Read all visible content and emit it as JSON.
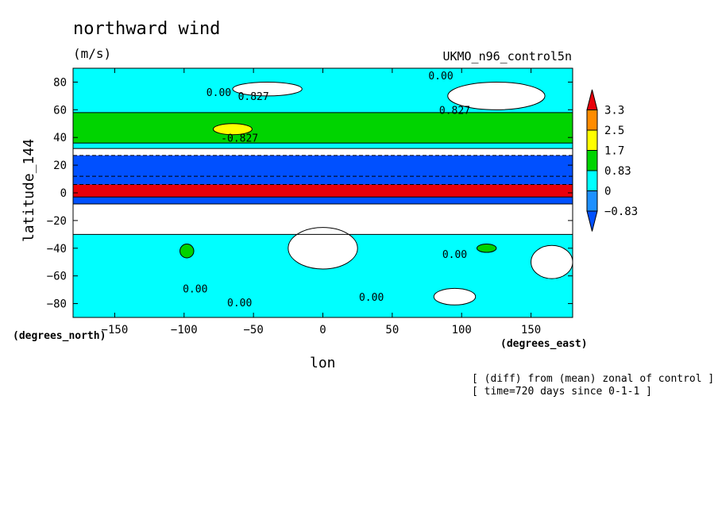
{
  "chart_data": {
    "type": "heatmap",
    "title": "northward wind",
    "units": "(m/s)",
    "dataset": "UKMO_n96_control5n",
    "xlabel": "lon",
    "ylabel": "latitude_144",
    "x_unit_label": "(degrees_east)",
    "y_unit_label": "(degrees_north)",
    "xlim": [
      -180,
      180
    ],
    "ylim": [
      -90,
      90
    ],
    "x_ticks": [
      -150,
      -100,
      -50,
      0,
      50,
      100,
      150
    ],
    "y_ticks": [
      80,
      60,
      40,
      20,
      0,
      -20,
      -40,
      -60,
      -80
    ],
    "colorbar": {
      "levels": [
        "3.3",
        "2.5",
        "1.7",
        "0.83",
        "0",
        "−0.83"
      ],
      "colors": [
        "#e8000b",
        "#ff8c00",
        "#ffff00",
        "#00d400",
        "#00ffff",
        "#1e90ff",
        "#0050ff"
      ]
    },
    "contour_labels": [
      "0.00",
      "0.827",
      "-0.827"
    ],
    "notes": [
      "[ (diff) from (mean) zonal of control ]",
      "[ time=720 days since 0-1-1 ]"
    ],
    "bands": [
      {
        "lat_from": 90,
        "lat_to": 58,
        "level": "0"
      },
      {
        "lat_from": 58,
        "lat_to": 36,
        "level": "0.83"
      },
      {
        "lat_from": 36,
        "lat_to": 32,
        "level": "0"
      },
      {
        "lat_from": 32,
        "lat_to": 27,
        "level": "-0.83"
      },
      {
        "lat_from": 27,
        "lat_to": 12,
        "level": "below"
      },
      {
        "lat_from": 12,
        "lat_to": 6,
        "level": "below"
      },
      {
        "lat_from": 6,
        "lat_to": -3,
        "level": "3.3"
      },
      {
        "lat_from": -3,
        "lat_to": -8,
        "level": "below"
      },
      {
        "lat_from": -8,
        "lat_to": -30,
        "level": "-0.83"
      },
      {
        "lat_from": -30,
        "lat_to": -90,
        "level": "0"
      }
    ],
    "blobs": [
      {
        "lon": -65,
        "lat": 46,
        "rlon": 14,
        "rlat": 4,
        "level": "1.7"
      },
      {
        "lon": 125,
        "lat": 70,
        "rlon": 35,
        "rlat": 10,
        "level": "-0.83"
      },
      {
        "lon": -40,
        "lat": 75,
        "rlon": 25,
        "rlat": 5,
        "level": "-0.83"
      },
      {
        "lon": -98,
        "lat": -42,
        "rlon": 5,
        "rlat": 5,
        "level": "0.83"
      },
      {
        "lon": 118,
        "lat": -40,
        "rlon": 7,
        "rlat": 3,
        "level": "0.83"
      },
      {
        "lon": 0,
        "lat": -40,
        "rlon": 25,
        "rlat": 15,
        "level": "-0.83"
      },
      {
        "lon": 95,
        "lat": -75,
        "rlon": 15,
        "rlat": 6,
        "level": "-0.83"
      },
      {
        "lon": 165,
        "lat": -50,
        "rlon": 15,
        "rlat": 12,
        "level": "-0.83"
      }
    ]
  }
}
